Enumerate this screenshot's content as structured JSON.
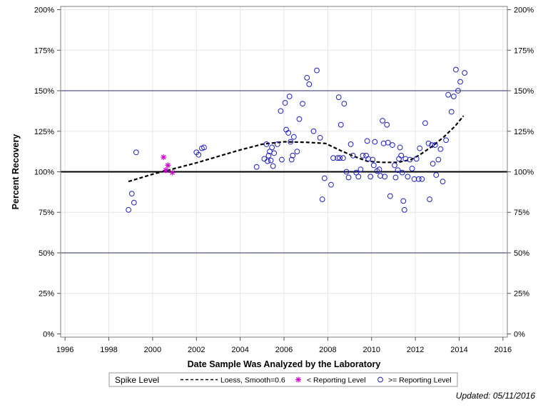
{
  "chart_data": {
    "type": "scatter",
    "xlabel": "Date Sample Was Analyzed by the Laboratory",
    "ylabel": "Percent Recovery",
    "xlim": [
      1995.8,
      2016.2
    ],
    "ylim": [
      -2,
      202
    ],
    "x_ticks": [
      1996,
      1998,
      2000,
      2002,
      2004,
      2006,
      2008,
      2010,
      2012,
      2014,
      2016
    ],
    "x_tick_labels": [
      "1996",
      "1998",
      "2000",
      "2002",
      "2004",
      "2006",
      "2008",
      "2010",
      "2012",
      "2014",
      "2016"
    ],
    "y_ticks": [
      0,
      25,
      50,
      75,
      100,
      125,
      150,
      175,
      200
    ],
    "y_tick_labels": [
      "0%",
      "25%",
      "50%",
      "75%",
      "100%",
      "125%",
      "150%",
      "175%",
      "200%"
    ],
    "grid": true,
    "reference_lines": [
      {
        "y": 100,
        "style": "thick-black"
      },
      {
        "y": 50,
        "style": "thin-navy"
      },
      {
        "y": 150,
        "style": "thin-navy"
      }
    ],
    "legend": {
      "title": "Spike Level",
      "placement": "bottom",
      "entries": [
        {
          "label": "Loess, Smooth=0.6",
          "symbol": "dashed-line",
          "color": "#000000"
        },
        {
          "label": "< Reporting Level",
          "symbol": "asterisk",
          "color": "#d400d4"
        },
        {
          "label": ">= Reporting Level",
          "symbol": "circle",
          "color": "#2020c0"
        }
      ]
    },
    "series": [
      {
        "name": "Loess, Smooth=0.6",
        "kind": "line",
        "color": "#000000",
        "points": [
          [
            1998.9,
            94
          ],
          [
            2000.0,
            98.5
          ],
          [
            2001.0,
            102
          ],
          [
            2002.0,
            105.5
          ],
          [
            2003.0,
            109.5
          ],
          [
            2004.0,
            113.5
          ],
          [
            2005.0,
            117
          ],
          [
            2006.0,
            118.5
          ],
          [
            2007.0,
            118.2
          ],
          [
            2007.9,
            117.5
          ],
          [
            2008.6,
            113
          ],
          [
            2009.2,
            109.5
          ],
          [
            2009.8,
            106.5
          ],
          [
            2010.5,
            105.8
          ],
          [
            2011.2,
            105.8
          ],
          [
            2011.8,
            107.5
          ],
          [
            2012.2,
            110.5
          ],
          [
            2012.8,
            116
          ],
          [
            2013.3,
            121.5
          ],
          [
            2013.8,
            128
          ],
          [
            2014.2,
            134.5
          ]
        ]
      },
      {
        "name": "< Reporting Level",
        "kind": "asterisk",
        "color": "#d400d4",
        "points": [
          [
            2000.5,
            109
          ],
          [
            2000.7,
            104
          ],
          [
            2000.6,
            101
          ],
          [
            2000.9,
            99.5
          ]
        ]
      },
      {
        "name": ">= Reporting Level",
        "kind": "circle",
        "color": "#2020c0",
        "points": [
          [
            1998.9,
            76.5
          ],
          [
            1999.05,
            86.5
          ],
          [
            1999.15,
            81
          ],
          [
            1999.25,
            112
          ],
          [
            2002.0,
            112
          ],
          [
            2002.1,
            110.5
          ],
          [
            2002.25,
            114.5
          ],
          [
            2002.35,
            115
          ],
          [
            2004.75,
            103
          ],
          [
            2005.1,
            108
          ],
          [
            2005.2,
            117
          ],
          [
            2005.25,
            106.5
          ],
          [
            2005.3,
            110
          ],
          [
            2005.35,
            112.5
          ],
          [
            2005.4,
            107
          ],
          [
            2005.45,
            115
          ],
          [
            2005.5,
            103.5
          ],
          [
            2005.55,
            111.5
          ],
          [
            2005.7,
            117
          ],
          [
            2005.85,
            137.5
          ],
          [
            2005.9,
            107.5
          ],
          [
            2006.05,
            142.5
          ],
          [
            2006.1,
            126
          ],
          [
            2006.2,
            124
          ],
          [
            2006.25,
            146.5
          ],
          [
            2006.3,
            118.5
          ],
          [
            2006.35,
            107.5
          ],
          [
            2006.4,
            110
          ],
          [
            2006.45,
            121.5
          ],
          [
            2006.6,
            112.5
          ],
          [
            2006.7,
            132.5
          ],
          [
            2006.85,
            142
          ],
          [
            2007.05,
            158
          ],
          [
            2007.15,
            154
          ],
          [
            2007.35,
            125
          ],
          [
            2007.5,
            162.5
          ],
          [
            2007.65,
            121
          ],
          [
            2007.75,
            83
          ],
          [
            2007.85,
            96
          ],
          [
            2008.15,
            92
          ],
          [
            2008.25,
            108.5
          ],
          [
            2008.45,
            108.5
          ],
          [
            2008.5,
            146
          ],
          [
            2008.55,
            108.5
          ],
          [
            2008.6,
            129
          ],
          [
            2008.7,
            108.5
          ],
          [
            2008.75,
            142
          ],
          [
            2008.85,
            100
          ],
          [
            2008.95,
            96.5
          ],
          [
            2009.05,
            117
          ],
          [
            2009.15,
            110
          ],
          [
            2009.3,
            99.5
          ],
          [
            2009.4,
            97
          ],
          [
            2009.5,
            101.5
          ],
          [
            2009.6,
            110
          ],
          [
            2009.75,
            110
          ],
          [
            2009.8,
            119
          ],
          [
            2009.85,
            108
          ],
          [
            2009.95,
            97
          ],
          [
            2010.05,
            107.5
          ],
          [
            2010.1,
            104
          ],
          [
            2010.15,
            118.5
          ],
          [
            2010.25,
            100.5
          ],
          [
            2010.35,
            101.5
          ],
          [
            2010.4,
            97.5
          ],
          [
            2010.5,
            131.5
          ],
          [
            2010.55,
            117.5
          ],
          [
            2010.6,
            97
          ],
          [
            2010.7,
            129
          ],
          [
            2010.75,
            118
          ],
          [
            2010.85,
            85
          ],
          [
            2010.95,
            116.5
          ],
          [
            2011.05,
            104
          ],
          [
            2011.1,
            96.5
          ],
          [
            2011.2,
            101
          ],
          [
            2011.25,
            108
          ],
          [
            2011.3,
            115
          ],
          [
            2011.35,
            110
          ],
          [
            2011.4,
            99.5
          ],
          [
            2011.45,
            82
          ],
          [
            2011.5,
            76.5
          ],
          [
            2011.55,
            108
          ],
          [
            2011.65,
            97
          ],
          [
            2011.75,
            107.5
          ],
          [
            2011.85,
            102
          ],
          [
            2011.95,
            95.5
          ],
          [
            2012.05,
            108
          ],
          [
            2012.15,
            95.5
          ],
          [
            2012.2,
            114.5
          ],
          [
            2012.3,
            95.5
          ],
          [
            2012.45,
            130
          ],
          [
            2012.6,
            117.5
          ],
          [
            2012.65,
            83
          ],
          [
            2012.75,
            116.5
          ],
          [
            2012.8,
            105
          ],
          [
            2012.9,
            116.5
          ],
          [
            2012.95,
            98
          ],
          [
            2013.05,
            107.5
          ],
          [
            2013.15,
            114
          ],
          [
            2013.25,
            94
          ],
          [
            2013.4,
            119.5
          ],
          [
            2013.5,
            147.5
          ],
          [
            2013.65,
            137
          ],
          [
            2013.75,
            146.5
          ],
          [
            2013.85,
            163
          ],
          [
            2013.95,
            150
          ],
          [
            2014.05,
            155.5
          ],
          [
            2014.25,
            161
          ]
        ]
      }
    ]
  },
  "footer": {
    "updated_text": "Updated: 05/11/2016"
  }
}
